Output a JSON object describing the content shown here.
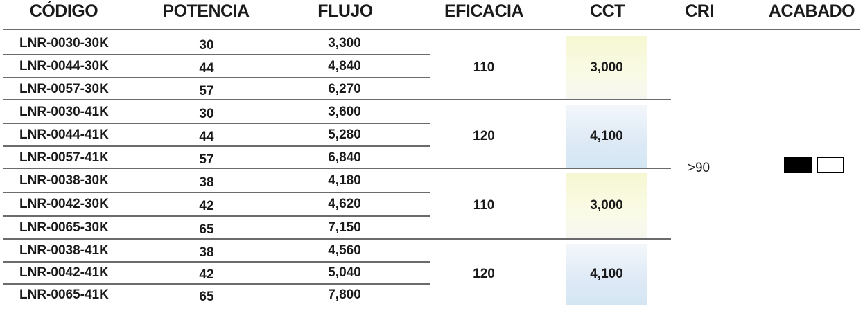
{
  "headers": {
    "codigo": "CÓDIGO",
    "potencia": "POTENCIA",
    "flujo": "FLUJO",
    "eficacia": "EFICACIA",
    "cct": "CCT",
    "cri": "CRI",
    "acabado": "ACABADO"
  },
  "groups": [
    {
      "eficacia": "110",
      "cct": "3,000",
      "cct_tone": "warm",
      "rows": [
        {
          "codigo": "LNR-0030-30K",
          "potencia": "30",
          "flujo": "3,300"
        },
        {
          "codigo": "LNR-0044-30K",
          "potencia": "44",
          "flujo": "4,840"
        },
        {
          "codigo": "LNR-0057-30K",
          "potencia": "57",
          "flujo": "6,270"
        }
      ]
    },
    {
      "eficacia": "120",
      "cct": "4,100",
      "cct_tone": "cool",
      "rows": [
        {
          "codigo": "LNR-0030-41K",
          "potencia": "30",
          "flujo": "3,600"
        },
        {
          "codigo": "LNR-0044-41K",
          "potencia": "44",
          "flujo": "5,280"
        },
        {
          "codigo": "LNR-0057-41K",
          "potencia": "57",
          "flujo": "6,840"
        }
      ]
    },
    {
      "eficacia": "110",
      "cct": "3,000",
      "cct_tone": "warm",
      "rows": [
        {
          "codigo": "LNR-0038-30K",
          "potencia": "38",
          "flujo": "4,180"
        },
        {
          "codigo": "LNR-0042-30K",
          "potencia": "42",
          "flujo": "4,620"
        },
        {
          "codigo": "LNR-0065-30K",
          "potencia": "65",
          "flujo": "7,150"
        }
      ]
    },
    {
      "eficacia": "120",
      "cct": "4,100",
      "cct_tone": "cool",
      "rows": [
        {
          "codigo": "LNR-0038-41K",
          "potencia": "38",
          "flujo": "4,560"
        },
        {
          "codigo": "LNR-0042-41K",
          "potencia": "42",
          "flujo": "5,040"
        },
        {
          "codigo": "LNR-0065-41K",
          "potencia": "65",
          "flujo": "7,800"
        }
      ]
    }
  ],
  "cri": ">90",
  "acabado": {
    "swatches": [
      {
        "name": "black",
        "color": "#000000"
      },
      {
        "name": "white",
        "color": "#ffffff"
      }
    ]
  }
}
